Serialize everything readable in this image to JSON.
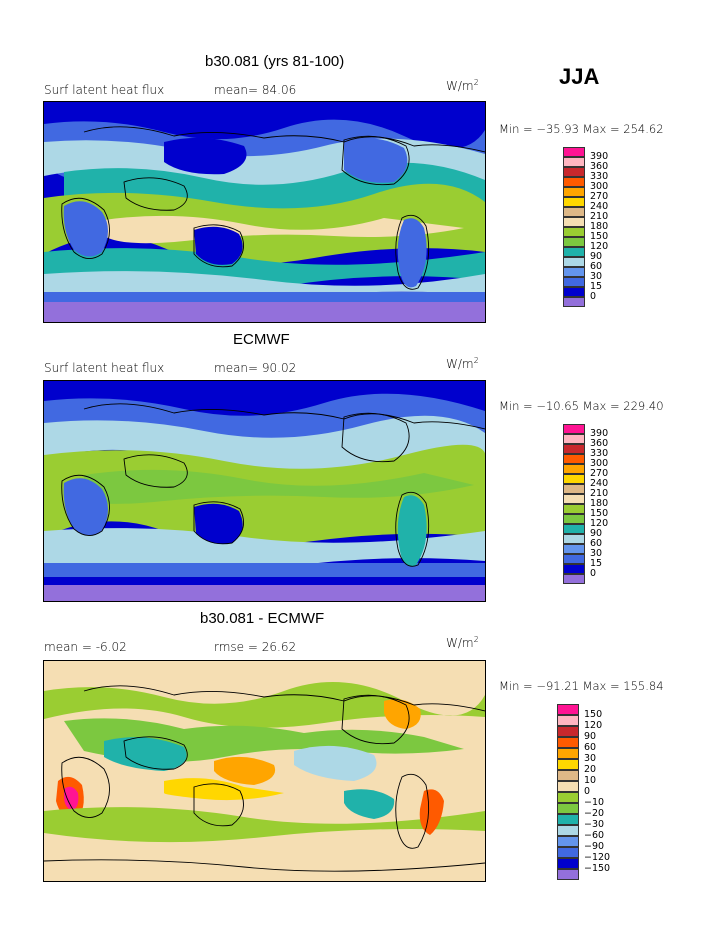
{
  "season": "JJA",
  "units": "W/m",
  "units_sup": "2",
  "panels": [
    {
      "title": "b30.081 (yrs 81-100)",
      "left_label": "Surf latent heat flux",
      "mid_label": "mean=  84.06",
      "minmax": "Min = −35.93  Max = 254.62",
      "legend": [
        "390",
        "360",
        "330",
        "300",
        "270",
        "240",
        "210",
        "180",
        "150",
        "120",
        "90",
        "60",
        "30",
        "15",
        "0"
      ]
    },
    {
      "title": "ECMWF",
      "left_label": "Surf latent heat flux",
      "mid_label": "mean=  90.02",
      "minmax": "Min = −10.65  Max = 229.40",
      "legend": [
        "390",
        "360",
        "330",
        "300",
        "270",
        "240",
        "210",
        "180",
        "150",
        "120",
        "90",
        "60",
        "30",
        "15",
        "0"
      ]
    },
    {
      "title": "b30.081 - ECMWF",
      "left_label": "mean =   -6.02",
      "mid_label": "rmse =  26.62",
      "minmax": "Min = −91.21  Max = 155.84",
      "legend": [
        "150",
        "120",
        "90",
        "60",
        "30",
        "20",
        "10",
        "0",
        "−10",
        "−20",
        "−30",
        "−60",
        "−90",
        "−120",
        "−150"
      ]
    }
  ],
  "colors": {
    "abs_scale": [
      "#ff1493",
      "#ffb6c1",
      "#c8282d",
      "#ff5a00",
      "#ffa500",
      "#ffd700",
      "#deb887",
      "#f5deb3",
      "#9acd32",
      "#7cc840",
      "#20b2aa",
      "#add8e6",
      "#6495ed",
      "#4169e1",
      "#0000cd",
      "#9370db"
    ],
    "diff_scale": [
      "#ff1493",
      "#ffb6c1",
      "#c8282d",
      "#ff5a00",
      "#ffa500",
      "#ffd700",
      "#deb887",
      "#f5deb3",
      "#9acd32",
      "#7cc840",
      "#20b2aa",
      "#add8e6",
      "#6495ed",
      "#4169e1",
      "#0000cd",
      "#9370db"
    ]
  }
}
